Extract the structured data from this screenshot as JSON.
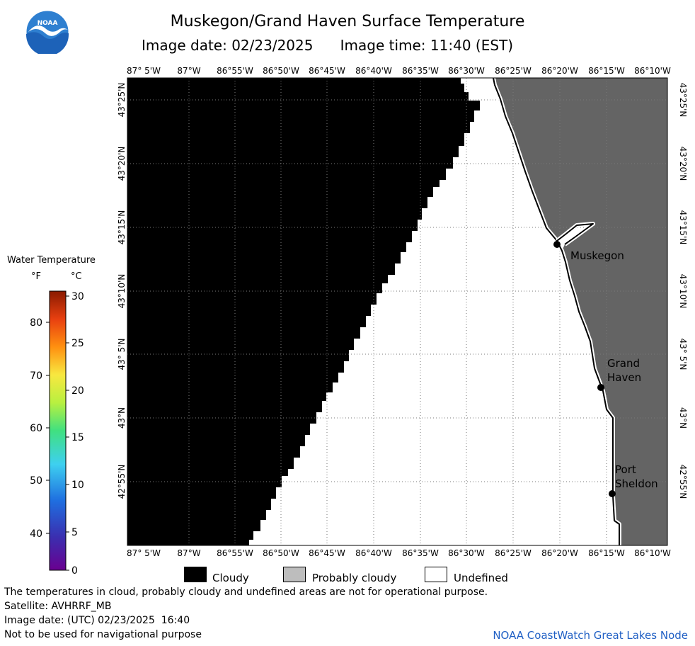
{
  "header": {
    "title": "Muskegon/Grand Haven Surface Temperature",
    "image_date_label": "Image date: 02/23/2025",
    "image_time_label": "Image time: 11:40 (EST)"
  },
  "logo": {
    "text": "NOAA",
    "colors": {
      "sky": "#2e7fd0",
      "sea": "#1d62b8",
      "wave": "#ffffff"
    }
  },
  "map": {
    "longitude_ticks": [
      "87° 5'W",
      "87°W",
      "86°55'W",
      "86°50'W",
      "86°45'W",
      "86°40'W",
      "86°35'W",
      "86°30'W",
      "86°25'W",
      "86°20'W",
      "86°15'W",
      "86°10'W"
    ],
    "latitude_ticks": [
      "43°25'N",
      "43°20'N",
      "43°15'N",
      "43°10'N",
      "43° 5'N",
      "43°N",
      "42°55'N"
    ],
    "cities": [
      {
        "name_line1": "Muskegon",
        "name_line2": ""
      },
      {
        "name_line1": "Grand",
        "name_line2": "Haven"
      },
      {
        "name_line1": "Port",
        "name_line2": "Sheldon"
      }
    ],
    "colors": {
      "cloudy": "#000000",
      "land": "#646464",
      "undefined": "#ffffff",
      "coast": "#000000"
    }
  },
  "colorbar": {
    "title": "Water Temperature",
    "unit_f": "°F",
    "unit_c": "°C",
    "f_ticks": [
      "80",
      "70",
      "60",
      "50",
      "40"
    ],
    "c_ticks": [
      "30",
      "25",
      "20",
      "15",
      "10",
      "5",
      "0"
    ],
    "c_range": [
      0,
      30
    ]
  },
  "legend": {
    "cloudy": "Cloudy",
    "probably_cloudy": "Probably cloudy",
    "undefined": "Undefined",
    "colors": {
      "cloudy": "#000000",
      "probably_cloudy": "#bdbdbd",
      "undefined": "#ffffff"
    }
  },
  "notes": {
    "line1": "The temperatures in cloud, probably cloudy and undefined areas are not for operational purpose.",
    "line2": "Satellite: AVHRRF_MB",
    "line3": "Image date: (UTC) 02/23/2025  16:40",
    "line4": "Not to be used for navigational purpose"
  },
  "credit": "NOAA CoastWatch Great Lakes Node"
}
